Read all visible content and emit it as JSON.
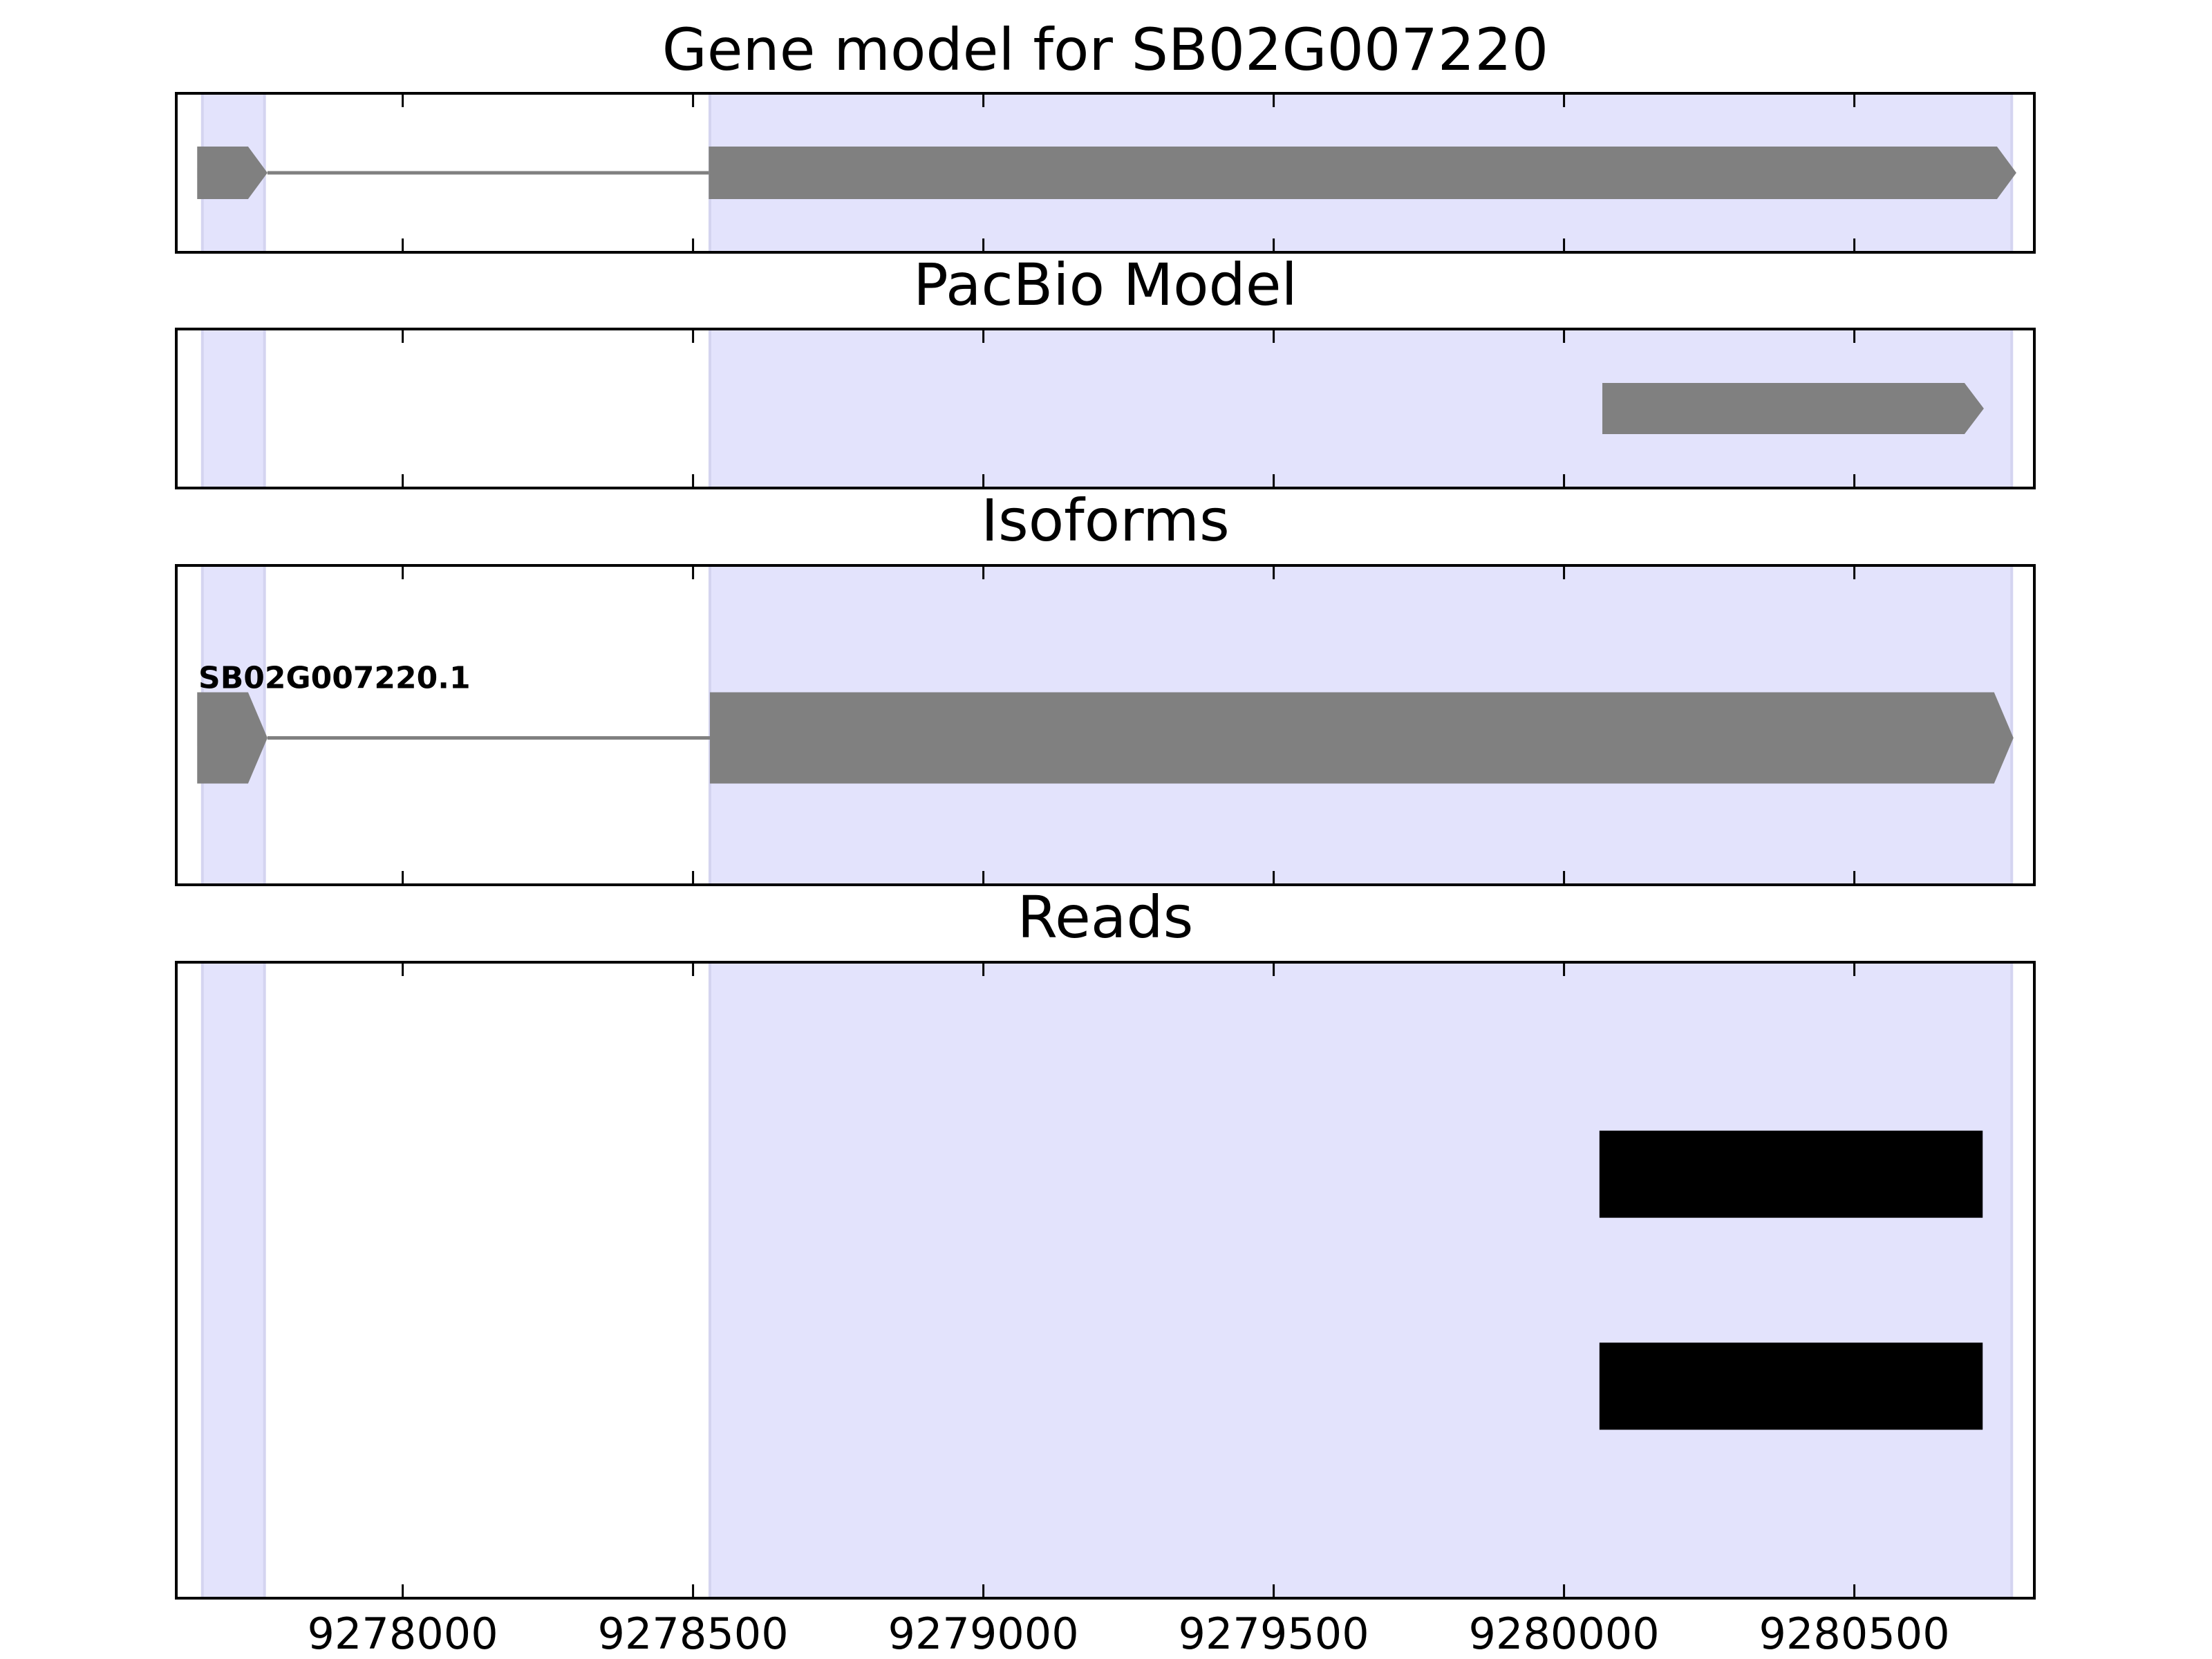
{
  "chart_data": [
    {
      "type": "gene",
      "title": "Gene model for SB02G007220",
      "xlim": [
        9277610,
        9280810
      ],
      "highlights": [
        [
          9277655,
          9277762
        ],
        [
          9278529,
          9280771
        ]
      ],
      "color": "#808080",
      "tracks": [
        {
          "exons": [
            [
              9277646,
              9277767
            ],
            [
              9278527,
              9280779
            ]
          ]
        }
      ]
    },
    {
      "type": "gene",
      "title": "PacBio Model",
      "xlim": [
        9277610,
        9280810
      ],
      "highlights": [
        [
          9277655,
          9277762
        ],
        [
          9278529,
          9280771
        ]
      ],
      "color": "#808080",
      "tracks": [
        {
          "exons": [
            [
              9280066,
              9280723
            ]
          ]
        }
      ]
    },
    {
      "type": "gene",
      "title": "Isoforms",
      "xlim": [
        9277610,
        9280810
      ],
      "highlights": [
        [
          9277655,
          9277762
        ],
        [
          9278529,
          9280771
        ]
      ],
      "color": "#808080",
      "tracks": [
        {
          "label": "SB02G007220.1",
          "exons": [
            [
              9277646,
              9277767
            ],
            [
              9278529,
              9280774
            ]
          ]
        }
      ]
    },
    {
      "type": "reads",
      "title": "Reads",
      "xlim": [
        9277610,
        9280810
      ],
      "highlights": [
        [
          9277655,
          9277762
        ],
        [
          9278529,
          9280771
        ]
      ],
      "color": "#000000",
      "tracks": [
        {
          "exons": [
            [
              9280061,
              9280721
            ]
          ]
        },
        {
          "exons": [
            [
              9280061,
              9280721
            ]
          ]
        }
      ],
      "xticks": [
        9278000,
        9278500,
        9279000,
        9279500,
        9280000,
        9280500
      ]
    }
  ]
}
